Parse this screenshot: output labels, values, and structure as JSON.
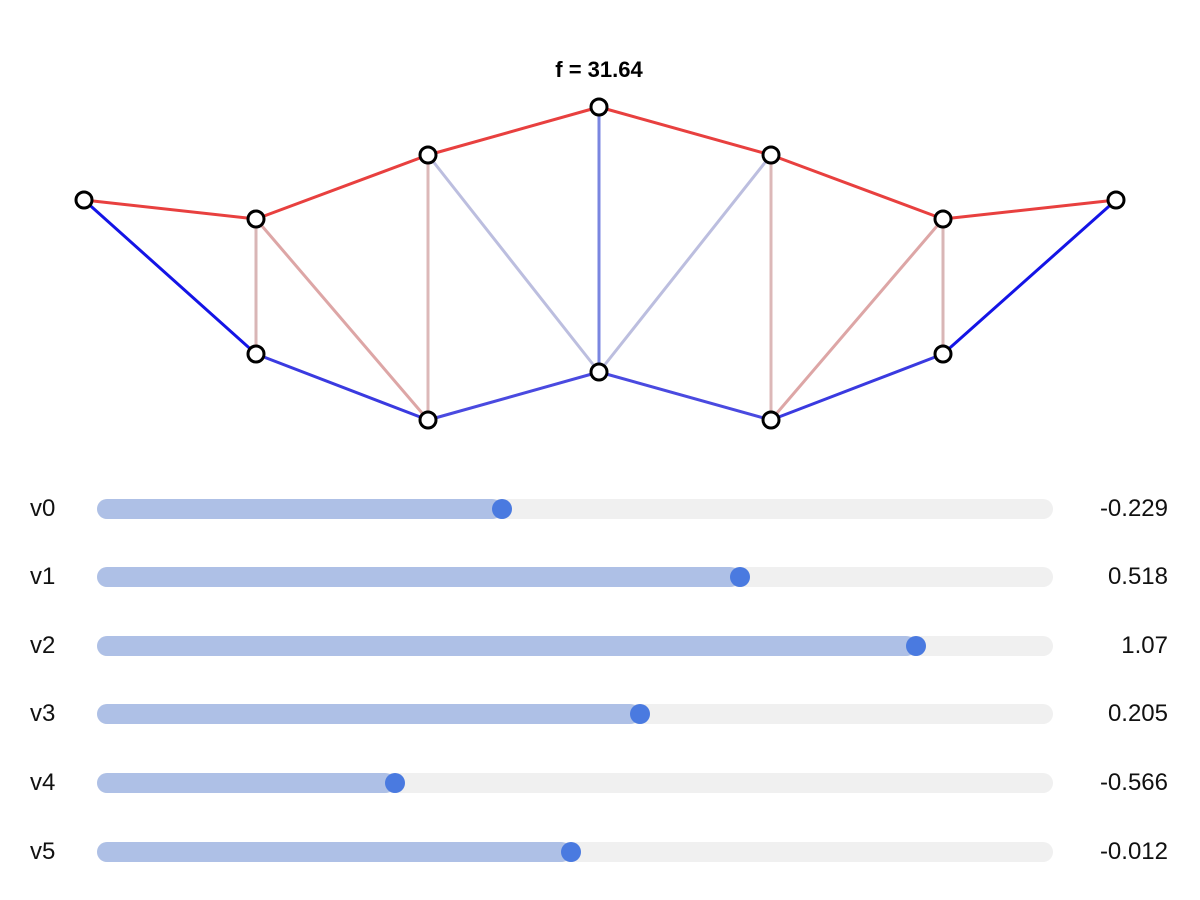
{
  "title": "f = 31.64",
  "truss": {
    "node_color": "#ffffff",
    "node_stroke": "#000000",
    "members": [
      {
        "color": "#e8403f"
      },
      {
        "color": "#e8403f"
      },
      {
        "color": "#e8403f"
      },
      {
        "color": "#e8403f"
      },
      {
        "color": "#e8403f"
      },
      {
        "color": "#e8403f"
      },
      {
        "color": "#1414e6"
      },
      {
        "color": "#3a3ae0"
      },
      {
        "color": "#4a4ae0"
      },
      {
        "color": "#4a4ae0"
      },
      {
        "color": "#3a3ae0"
      },
      {
        "color": "#1414e6"
      },
      {
        "color": "#d9b6b6"
      },
      {
        "color": "#dcb8b8"
      },
      {
        "color": "#7a86e0"
      },
      {
        "color": "#dcb8b8"
      },
      {
        "color": "#d9b6b6"
      },
      {
        "color": "#dda6a6"
      },
      {
        "color": "#bcbedf"
      },
      {
        "color": "#bcbedf"
      },
      {
        "color": "#dda6a6"
      }
    ]
  },
  "sliders": {
    "min": -1.5,
    "max": 1.5,
    "items": [
      {
        "label": "v0",
        "value": -0.229,
        "display": "-0.229"
      },
      {
        "label": "v1",
        "value": 0.518,
        "display": "0.518"
      },
      {
        "label": "v2",
        "value": 1.07,
        "display": "1.07"
      },
      {
        "label": "v3",
        "value": 0.205,
        "display": "0.205"
      },
      {
        "label": "v4",
        "value": -0.566,
        "display": "-0.566"
      },
      {
        "label": "v5",
        "value": -0.012,
        "display": "-0.012"
      }
    ]
  },
  "colors": {
    "track": "#f0f0f0",
    "fill": "#aec0e6",
    "thumb": "#4a7ae0"
  }
}
